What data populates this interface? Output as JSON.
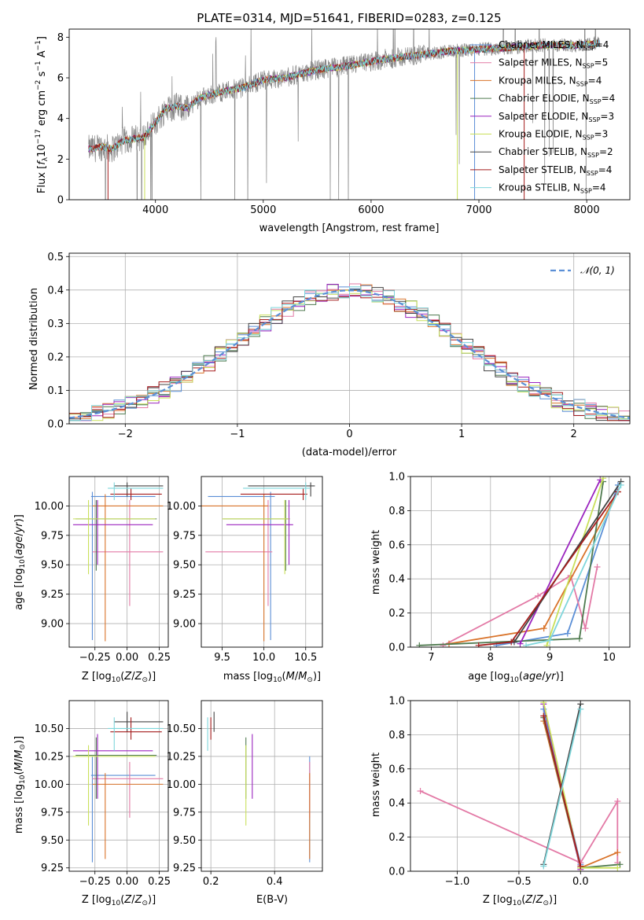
{
  "colors": {
    "chabrier_miles": "#5B8FD6",
    "salpeter_miles": "#E37AA6",
    "kroupa_miles": "#D9732A",
    "chabrier_elodie": "#4F7A4F",
    "salpeter_elodie": "#9B25BF",
    "kroupa_elodie": "#C9E05A",
    "chabrier_stelib": "#444444",
    "salpeter_stelib": "#A51C1C",
    "kroupa_stelib": "#7FD6DB",
    "data": "#888888",
    "normal": "#5B8FD6",
    "grid": "#b0b0b0"
  },
  "chart_data": [
    {
      "id": "spectrum",
      "type": "line",
      "title": "PLATE=0314, MJD=51641, FIBERID=0283, z=0.125",
      "xlabel": "wavelength [Angstrom, rest frame]",
      "ylabel": "Flux [f_λ10^-17 erg cm^-2 s^-1 A^-1]",
      "xlim": [
        3200,
        8400
      ],
      "ylim": [
        0,
        8.4
      ],
      "xticks": [
        "4000",
        "5000",
        "6000",
        "7000",
        "8000"
      ],
      "yticks": [
        "0",
        "2",
        "4",
        "6",
        "8"
      ],
      "continuum": {
        "x": [
          3400,
          3500,
          3600,
          3700,
          3800,
          3900,
          4000,
          4100,
          4200,
          4300,
          4400,
          4600,
          4800,
          5000,
          5200,
          5500,
          5800,
          6100,
          6400,
          6700,
          7000,
          7300,
          7600,
          7900,
          8100
        ],
        "y": [
          2.5,
          2.6,
          2.5,
          2.9,
          3.0,
          3.1,
          3.8,
          4.5,
          4.6,
          4.5,
          5.0,
          5.3,
          5.5,
          5.9,
          6.0,
          6.4,
          6.6,
          6.9,
          7.1,
          7.3,
          7.4,
          7.5,
          7.6,
          7.6,
          7.7
        ]
      },
      "legend": {
        "position": "right",
        "entries": [
          {
            "label": "Chabrier MILES, N_SSP=4",
            "key": "chabrier_miles"
          },
          {
            "label": "Salpeter MILES, N_SSP=5",
            "key": "salpeter_miles"
          },
          {
            "label": "Kroupa MILES, N_SSP=4",
            "key": "kroupa_miles"
          },
          {
            "label": "Chabrier ELODIE, N_SSP=4",
            "key": "chabrier_elodie"
          },
          {
            "label": "Salpeter ELODIE, N_SSP=3",
            "key": "salpeter_elodie"
          },
          {
            "label": "Kroupa ELODIE, N_SSP=3",
            "key": "kroupa_elodie"
          },
          {
            "label": "Chabrier STELIB, N_SSP=2",
            "key": "chabrier_stelib"
          },
          {
            "label": "Salpeter STELIB, N_SSP=4",
            "key": "salpeter_stelib"
          },
          {
            "label": "Kroupa STELIB, N_SSP=4",
            "key": "kroupa_stelib"
          }
        ]
      }
    },
    {
      "id": "residuals",
      "type": "line",
      "xlabel": "(data-model)/error",
      "ylabel": "Normed distribution",
      "xlim": [
        -2.5,
        2.5
      ],
      "ylim": [
        0,
        0.51
      ],
      "xticks": [
        "−2",
        "−1",
        "0",
        "1",
        "2"
      ],
      "yticks": [
        "0.0",
        "0.1",
        "0.2",
        "0.3",
        "0.4",
        "0.5"
      ],
      "legend": {
        "position": "top-right",
        "entries": [
          {
            "label": "𝒩(0, 1)",
            "key": "normal",
            "style": "dashed"
          }
        ]
      },
      "bin_width": 0.1
    },
    {
      "id": "age_vs_z",
      "type": "scatter",
      "xlabel": "Z [log10(Z/Z⊙)]",
      "ylabel": "age  [log10(age/yr)]",
      "xlim": [
        -0.45,
        0.32
      ],
      "ylim": [
        8.8,
        10.25
      ],
      "xticks": [
        "−0.25",
        "0.00",
        "0.25"
      ],
      "yticks": [
        "9.00",
        "9.25",
        "9.50",
        "9.75",
        "10.00"
      ]
    },
    {
      "id": "age_vs_mass",
      "type": "scatter",
      "xlabel": "mass [log10(M/M⊙)]",
      "xlim": [
        9.25,
        10.7
      ],
      "ylim": [
        8.8,
        10.25
      ],
      "xticks": [
        "9.5",
        "10.0",
        "10.5"
      ],
      "yticks": [
        "9.00",
        "9.25",
        "9.50",
        "9.75",
        "10.00"
      ]
    },
    {
      "id": "weight_vs_age",
      "type": "line",
      "xlabel": "age  [log10(age/yr)]",
      "ylabel": "mass weight",
      "xlim": [
        6.65,
        10.35
      ],
      "ylim": [
        0,
        1.0
      ],
      "xticks": [
        "7",
        "8",
        "9",
        "10"
      ],
      "yticks": [
        "0.0",
        "0.2",
        "0.4",
        "0.6",
        "0.8",
        "1.0"
      ],
      "series": [
        {
          "key": "chabrier_miles",
          "x": [
            8.1,
            9.3,
            10.15
          ],
          "y": [
            0.01,
            0.08,
            0.95
          ]
        },
        {
          "key": "salpeter_miles",
          "x": [
            7.2,
            8.8,
            9.35,
            9.6,
            9.8
          ],
          "y": [
            0.01,
            0.3,
            0.42,
            0.11,
            0.47
          ]
        },
        {
          "key": "kroupa_miles",
          "x": [
            7.3,
            8.9,
            10.15
          ],
          "y": [
            0.02,
            0.11,
            0.91
          ]
        },
        {
          "key": "chabrier_elodie",
          "x": [
            6.8,
            9.5,
            9.9
          ],
          "y": [
            0.01,
            0.05,
            0.97
          ]
        },
        {
          "key": "salpeter_elodie",
          "x": [
            8.5,
            9.85
          ],
          "y": [
            0.02,
            0.98
          ]
        },
        {
          "key": "kroupa_elodie",
          "x": [
            8.95,
            9.9
          ],
          "y": [
            0.01,
            0.99
          ]
        },
        {
          "key": "chabrier_stelib",
          "x": [
            8.4,
            10.2
          ],
          "y": [
            0.03,
            0.97
          ]
        },
        {
          "key": "salpeter_stelib",
          "x": [
            7.8,
            8.35,
            10.15
          ],
          "y": [
            0.01,
            0.03,
            0.91
          ]
        },
        {
          "key": "kroupa_stelib",
          "x": [
            8.6,
            9.0,
            10.2
          ],
          "y": [
            0.01,
            0.04,
            0.95
          ]
        }
      ]
    },
    {
      "id": "mass_vs_z",
      "type": "scatter",
      "xlabel": "Z [log10(Z/Z⊙)]",
      "ylabel": "mass [log10(M/M⊙)]",
      "xlim": [
        -0.45,
        0.32
      ],
      "ylim": [
        9.22,
        10.75
      ],
      "xticks": [
        "−0.25",
        "0.00",
        "0.25"
      ],
      "yticks": [
        "9.25",
        "9.50",
        "9.75",
        "10.00",
        "10.25",
        "10.50"
      ]
    },
    {
      "id": "mass_vs_ebv",
      "type": "scatter",
      "xlabel": "E(B-V)",
      "xlim": [
        0.17,
        0.55
      ],
      "ylim": [
        9.22,
        10.75
      ],
      "xticks": [
        "0.2",
        "0.4"
      ],
      "yticks": [
        "9.25",
        "9.50",
        "9.75",
        "10.00",
        "10.25",
        "10.50"
      ]
    },
    {
      "id": "weight_vs_z",
      "type": "line",
      "xlabel": "Z [log10(Z/Z⊙)]",
      "ylabel": "mass weight",
      "xlim": [
        -1.38,
        0.4
      ],
      "ylim": [
        0,
        1.0
      ],
      "xticks": [
        "−1.0",
        "−0.5",
        "0.0"
      ],
      "yticks": [
        "0.0",
        "0.2",
        "0.4",
        "0.6",
        "0.8",
        "1.0"
      ],
      "series": [
        {
          "key": "chabrier_miles",
          "x": [
            -0.3,
            0.0
          ],
          "y": [
            0.95,
            0.04
          ]
        },
        {
          "key": "salpeter_miles",
          "x": [
            -1.3,
            0.0,
            0.3,
            0.3
          ],
          "y": [
            0.47,
            0.05,
            0.41,
            0.05
          ]
        },
        {
          "key": "kroupa_miles",
          "x": [
            -0.3,
            0.0,
            0.3
          ],
          "y": [
            0.88,
            0.02,
            0.11
          ]
        },
        {
          "key": "chabrier_elodie",
          "x": [
            -0.3,
            0.0,
            0.32
          ],
          "y": [
            0.9,
            0.02,
            0.04
          ]
        },
        {
          "key": "salpeter_elodie",
          "x": [
            -0.3,
            0.0
          ],
          "y": [
            0.98,
            0.01
          ]
        },
        {
          "key": "kroupa_elodie",
          "x": [
            -0.3,
            0.0,
            0.3
          ],
          "y": [
            0.99,
            0.02,
            0.02
          ]
        },
        {
          "key": "chabrier_stelib",
          "x": [
            -0.3,
            0.0
          ],
          "y": [
            0.04,
            0.98
          ]
        },
        {
          "key": "salpeter_stelib",
          "x": [
            -0.3,
            0.0
          ],
          "y": [
            0.91,
            0.03
          ]
        },
        {
          "key": "kroupa_stelib",
          "x": [
            -0.3,
            0.0
          ],
          "y": [
            0.03,
            0.95
          ]
        }
      ]
    }
  ],
  "ssp_points": [
    {
      "key": "chabrier_miles",
      "z": -0.27,
      "z_lo": -0.28,
      "z_hi": 0.22,
      "age": 10.08,
      "age_lo": 8.86,
      "age_hi": 10.12,
      "mass": 10.08,
      "mass_lo": 9.3,
      "mass_hi": 10.25,
      "ebv": 0.51
    },
    {
      "key": "salpeter_miles",
      "z": 0.02,
      "z_lo": -0.27,
      "z_hi": 0.28,
      "age": 9.61,
      "age_lo": 9.15,
      "age_hi": 10.05,
      "mass": 10.05,
      "mass_lo": 9.7,
      "mass_hi": 10.2,
      "ebv": 0.51
    },
    {
      "key": "kroupa_miles",
      "z": -0.17,
      "z_lo": -0.27,
      "z_hi": 0.28,
      "age": 10.0,
      "age_lo": 8.85,
      "age_hi": 10.1,
      "mass": 10.0,
      "mass_lo": 9.33,
      "mass_hi": 10.1,
      "ebv": 0.51
    },
    {
      "key": "chabrier_elodie",
      "z": -0.24,
      "z_lo": -0.4,
      "z_hi": 0.23,
      "age": 9.89,
      "age_lo": 9.45,
      "age_hi": 10.05,
      "mass": 10.26,
      "mass_lo": 9.87,
      "mass_hi": 10.42,
      "ebv": 0.31
    },
    {
      "key": "salpeter_elodie",
      "z": -0.23,
      "z_lo": -0.42,
      "z_hi": 0.2,
      "age": 9.84,
      "age_lo": 9.5,
      "age_hi": 10.05,
      "mass": 10.3,
      "mass_lo": 9.87,
      "mass_hi": 10.45,
      "ebv": 0.33
    },
    {
      "key": "kroupa_elodie",
      "z": -0.3,
      "z_lo": -0.42,
      "z_hi": 0.22,
      "age": 9.89,
      "age_lo": 9.42,
      "age_hi": 10.05,
      "mass": 10.25,
      "mass_lo": 9.63,
      "mass_hi": 10.35,
      "ebv": 0.31
    },
    {
      "key": "chabrier_stelib",
      "z": 0.0,
      "z_lo": -0.1,
      "z_hi": 0.28,
      "age": 10.17,
      "age_lo": 10.08,
      "age_hi": 10.2,
      "mass": 10.56,
      "mass_lo": 10.47,
      "mass_hi": 10.65,
      "ebv": 0.21
    },
    {
      "key": "salpeter_stelib",
      "z": 0.03,
      "z_lo": -0.13,
      "z_hi": 0.27,
      "age": 10.1,
      "age_lo": 10.05,
      "age_hi": 10.15,
      "mass": 10.47,
      "mass_lo": 10.4,
      "mass_hi": 10.6,
      "ebv": 0.2
    },
    {
      "key": "kroupa_stelib",
      "z": -0.1,
      "z_lo": -0.15,
      "z_hi": 0.28,
      "age": 10.15,
      "age_lo": 10.05,
      "age_hi": 10.2,
      "mass": 10.5,
      "mass_lo": 10.3,
      "mass_hi": 10.6,
      "ebv": 0.19
    }
  ]
}
